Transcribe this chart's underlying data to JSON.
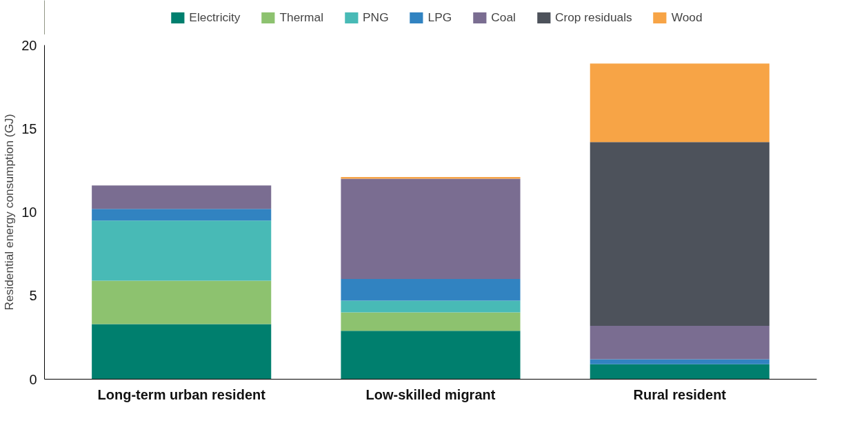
{
  "chart_data": {
    "type": "bar",
    "stacked": true,
    "ylabel": "Residential energy consumption (GJ)",
    "categories": [
      "Long-term urban resident",
      "Low-skilled migrant",
      "Rural resident"
    ],
    "series": [
      {
        "name": "Electricity",
        "color": "#007f6e",
        "values": [
          3.3,
          2.9,
          0.9
        ]
      },
      {
        "name": "Thermal",
        "color": "#8dc26f",
        "values": [
          2.6,
          1.1,
          0
        ]
      },
      {
        "name": "PNG",
        "color": "#48bab6",
        "values": [
          3.6,
          0.7,
          0
        ]
      },
      {
        "name": "LPG",
        "color": "#3183c1",
        "values": [
          0.7,
          1.3,
          0.3
        ]
      },
      {
        "name": "Coal",
        "color": "#7a6d91",
        "values": [
          1.4,
          6.0,
          2.0
        ]
      },
      {
        "name": "Crop residuals",
        "color": "#4d525b",
        "values": [
          0,
          0,
          11.0
        ]
      },
      {
        "name": "Wood",
        "color": "#f7a446",
        "values": [
          0,
          0.1,
          4.7
        ]
      }
    ],
    "ylim": [
      0,
      20
    ],
    "yticks": [
      0,
      5,
      10,
      15,
      20
    ],
    "grid": false,
    "legend": "top"
  }
}
